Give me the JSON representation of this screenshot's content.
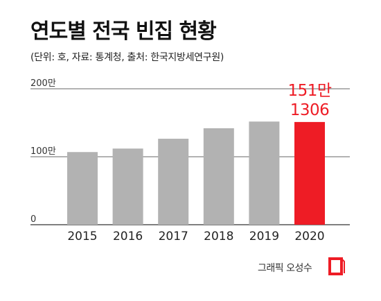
{
  "title": "연도별 전국 빈집 현황",
  "subtitle": "(단위: 호, 자료: 통계청, 출처: 한국지방세연구원)",
  "credit": "그래픽 오성수",
  "colors": {
    "bar": "#b2b2b2",
    "highlight": "#ee1c25",
    "grid": "#333333"
  },
  "chart_data": {
    "type": "bar",
    "categories": [
      "2015",
      "2016",
      "2017",
      "2018",
      "2019",
      "2020"
    ],
    "values": [
      1068919,
      1120207,
      1264707,
      1419617,
      1517815,
      1511306
    ],
    "highlight_index": 5,
    "highlight_label": [
      "151만",
      "1306"
    ],
    "y_ticks": [
      {
        "value": 0,
        "label": "0"
      },
      {
        "value": 1000000,
        "label": "100만"
      },
      {
        "value": 2000000,
        "label": "200만"
      }
    ],
    "ylim": [
      0,
      2000000
    ],
    "grid": true,
    "legend": "none"
  }
}
